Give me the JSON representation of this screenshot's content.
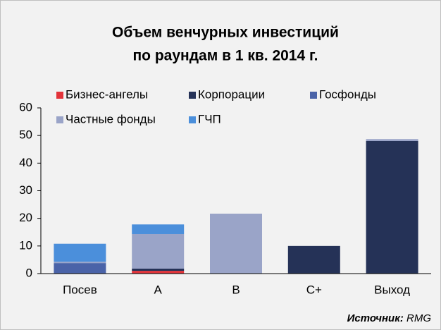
{
  "chart_data": {
    "type": "stacked_bar",
    "title": [
      "Объем венчурных инвестиций",
      "по раундам в 1 кв. 2014 г."
    ],
    "categories": [
      "Посев",
      "A",
      "B",
      "C+",
      "Выход"
    ],
    "series": [
      {
        "name": "Бизнес-ангелы",
        "color": "#e2333a",
        "values": [
          0,
          1,
          0,
          0,
          0
        ]
      },
      {
        "name": "Корпорации",
        "color": "#253257",
        "values": [
          0,
          0.8,
          0,
          10,
          48
        ]
      },
      {
        "name": "Госфонды",
        "color": "#4a63a8",
        "values": [
          3.8,
          0,
          0,
          0,
          0
        ]
      },
      {
        "name": "Частные фонды",
        "color": "#9aa4c8",
        "values": [
          0.5,
          12.5,
          21.7,
          0,
          0.7
        ]
      },
      {
        "name": "ГЧП",
        "color": "#4b8fdb",
        "values": [
          6.5,
          3.5,
          0,
          0,
          0
        ]
      }
    ],
    "ylim": [
      0,
      60
    ],
    "yticks": [
      0,
      10,
      20,
      30,
      40,
      50,
      60
    ],
    "source_label": "Источник:",
    "source": "RMG"
  }
}
